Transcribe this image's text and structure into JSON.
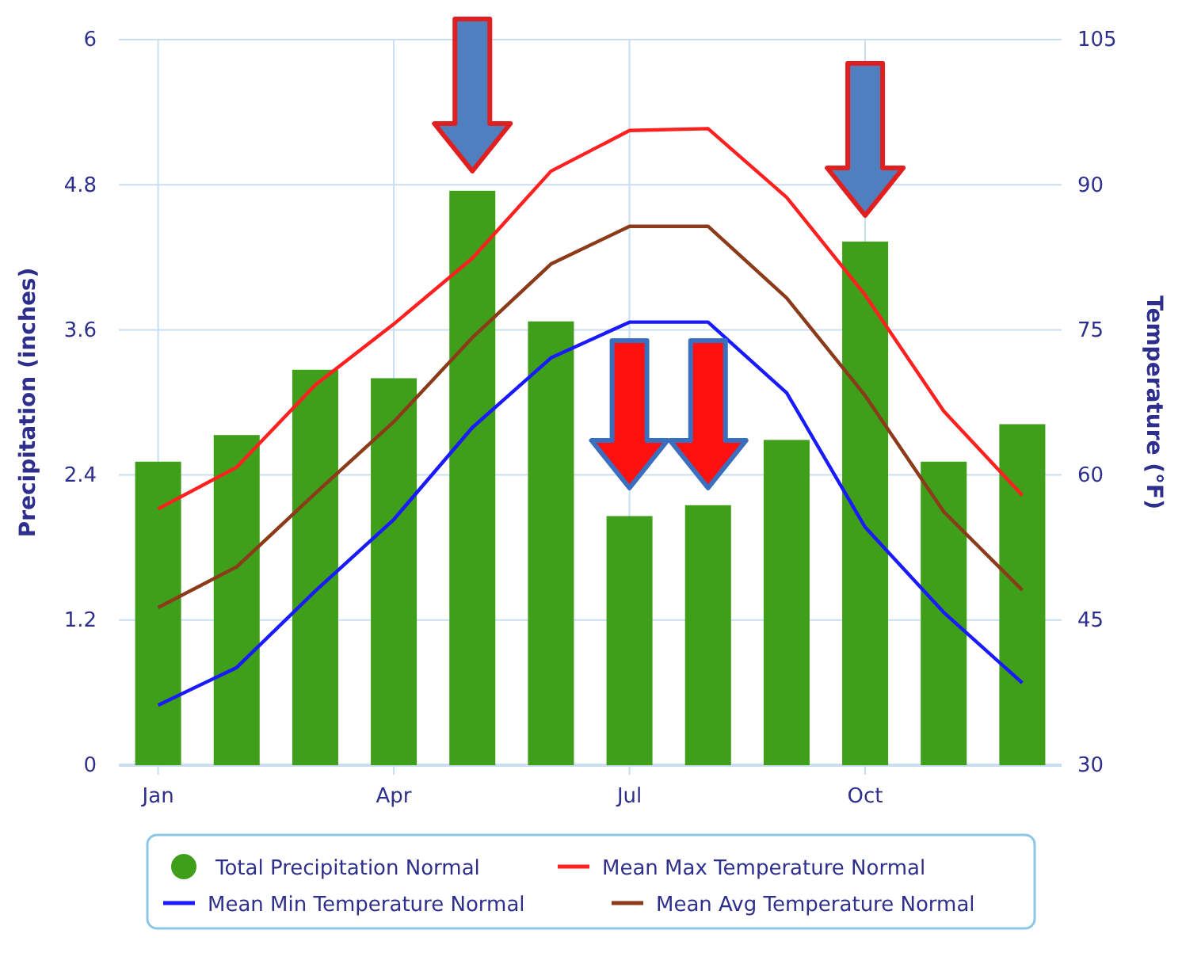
{
  "chart_data": {
    "type": "bar",
    "categories": [
      "Jan",
      null,
      null,
      "Apr",
      null,
      null,
      "Jul",
      null,
      null,
      "Oct",
      null,
      null
    ],
    "series": [
      {
        "name": "Total Precipitation Normal",
        "color": "#3f9e1a",
        "values": [
          2.51,
          2.73,
          3.27,
          3.2,
          4.75,
          3.67,
          2.06,
          2.15,
          2.69,
          4.33,
          2.51,
          2.82
        ]
      },
      {
        "name": "Mean Max Temperature Normal",
        "type": "line",
        "axis": "y2",
        "color": "#ff2020",
        "values": [
          56.5,
          60.8,
          69.3,
          75.6,
          82.4,
          91.4,
          95.6,
          95.8,
          88.7,
          78.6,
          66.6,
          57.9
        ]
      },
      {
        "name": "Mean Min Temperature Normal",
        "type": "line",
        "axis": "y2",
        "color": "#1a1aff",
        "values": [
          36.2,
          40.1,
          48.0,
          55.4,
          64.9,
          72.1,
          75.8,
          75.8,
          68.5,
          54.6,
          45.8,
          38.5
        ]
      },
      {
        "name": "Mean Avg Temperature Normal",
        "type": "line",
        "axis": "y2",
        "color": "#8b3a1a",
        "values": [
          46.3,
          50.5,
          58.1,
          65.5,
          74.2,
          81.8,
          85.7,
          85.7,
          78.3,
          68.2,
          56.2,
          48.1
        ]
      }
    ],
    "ylabel": "Precipitation (inches)",
    "y2label": "Temperature (°F)",
    "ylim": [
      0,
      6
    ],
    "yticks": [
      0,
      1.2,
      2.4,
      3.6,
      4.8,
      6
    ],
    "y2lim": [
      30,
      105
    ],
    "y2ticks": [
      30,
      45,
      60,
      75,
      90,
      105
    ],
    "grid": true,
    "legend": "bottom"
  }
}
